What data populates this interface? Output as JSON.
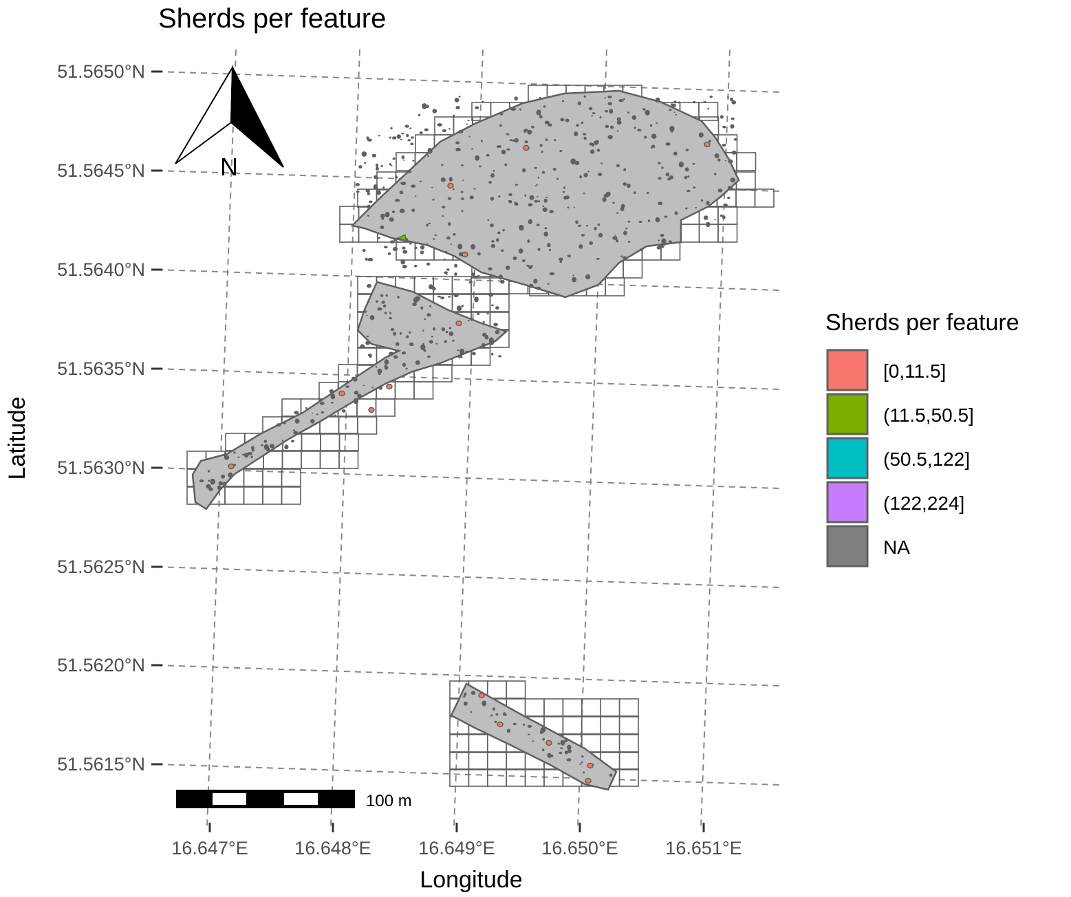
{
  "title": "Sherds per feature",
  "axes": {
    "xlabel": "Longitude",
    "ylabel": "Latitude",
    "x_ticks": [
      "16.647°E",
      "16.648°E",
      "16.649°E",
      "16.650°E",
      "16.651°E"
    ],
    "y_ticks": [
      "51.5650°N",
      "51.5645°N",
      "51.5640°N",
      "51.5635°N",
      "51.5630°N",
      "51.5625°N",
      "51.5620°N",
      "51.5615°N"
    ]
  },
  "north_arrow": {
    "label": "N"
  },
  "scale_bar": {
    "label": "100 m"
  },
  "legend": {
    "title": "Sherds per feature",
    "items": [
      {
        "label": "[0,11.5]",
        "color": "#F8766D"
      },
      {
        "label": "(11.5,50.5]",
        "color": "#7CAE00"
      },
      {
        "label": "(50.5,122]",
        "color": "#00BFC4"
      },
      {
        "label": "(122,224]",
        "color": "#C77CFF"
      },
      {
        "label": "NA",
        "color": "#808080"
      }
    ]
  },
  "colors": {
    "area_fill": "#bebebe",
    "outline": "#606060",
    "graticule": "#888888",
    "feature_na": "#606060"
  }
}
